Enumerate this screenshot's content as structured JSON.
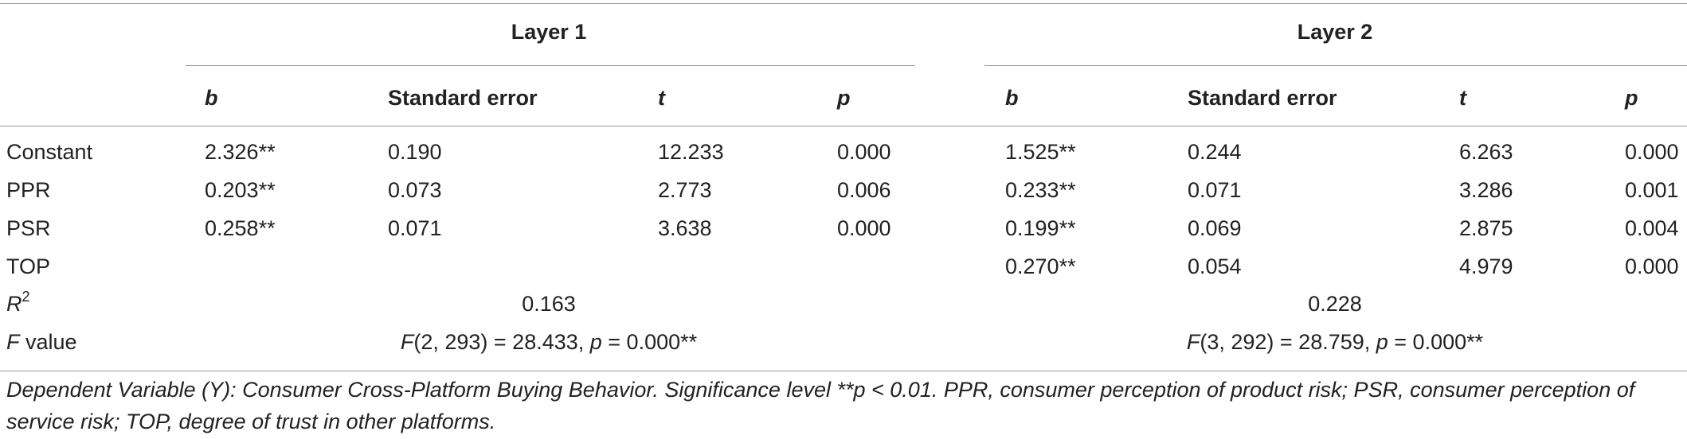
{
  "layers": [
    {
      "label": "Layer 1",
      "r2": "0.163",
      "f_stat": "(2, 293) = 28.433, ",
      "f_p": " = 0.000**"
    },
    {
      "label": "Layer 2",
      "r2": "0.228",
      "f_stat": "(3, 292) = 28.759, ",
      "f_p": " = 0.000**"
    }
  ],
  "columns": {
    "b": "b",
    "se": "Standard error",
    "t": "t",
    "p": "p"
  },
  "rows": [
    {
      "name": "Constant",
      "l1": [
        "2.326**",
        "0.190",
        "12.233",
        "0.000"
      ],
      "l2": [
        "1.525**",
        "0.244",
        "6.263",
        "0.000"
      ]
    },
    {
      "name": "PPR",
      "l1": [
        "0.203**",
        "0.073",
        "2.773",
        "0.006"
      ],
      "l2": [
        "0.233**",
        "0.071",
        "3.286",
        "0.001"
      ]
    },
    {
      "name": "PSR",
      "l1": [
        "0.258**",
        "0.071",
        "3.638",
        "0.000"
      ],
      "l2": [
        "0.199**",
        "0.069",
        "2.875",
        "0.004"
      ]
    },
    {
      "name": "TOP",
      "l1": [
        "",
        "",
        "",
        ""
      ],
      "l2": [
        "0.270**",
        "0.054",
        "4.979",
        "0.000"
      ]
    }
  ],
  "r2_label": {
    "base": "R",
    "sup": "2"
  },
  "f_label": {
    "italic": "F",
    "rest": " value"
  },
  "f_symbol": "F",
  "p_symbol": "p",
  "note": "Dependent Variable (Y): Consumer Cross-Platform Buying Behavior. Significance level **p < 0.01. PPR, consumer perception of product risk; PSR, consumer perception of service risk; TOP, degree of trust in other platforms."
}
